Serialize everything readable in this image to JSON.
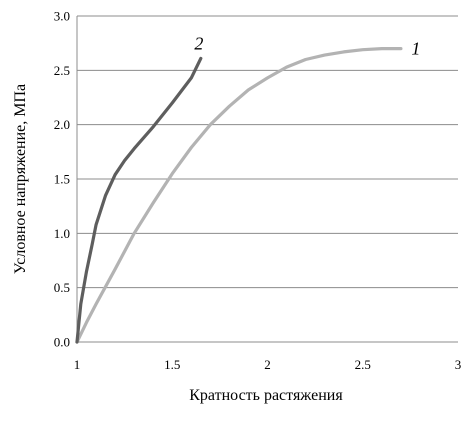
{
  "chart_data": {
    "type": "line",
    "title": "",
    "xlabel": "Кратность растяжения",
    "ylabel": "Условное напряжение, МПа",
    "xlim": [
      1,
      3
    ],
    "ylim": [
      0,
      3.0
    ],
    "x_ticks": [
      "1",
      "1.5",
      "2",
      "2.5",
      "3"
    ],
    "y_ticks": [
      "0.0",
      "0.5",
      "1.0",
      "1.5",
      "2.0",
      "2.5",
      "3.0"
    ],
    "grid": "horizontal",
    "legend": "none",
    "series": [
      {
        "name": "1",
        "color": "#b3b3b3",
        "x": [
          1.0,
          1.05,
          1.1,
          1.2,
          1.3,
          1.4,
          1.5,
          1.6,
          1.7,
          1.8,
          1.9,
          2.0,
          2.1,
          2.2,
          2.3,
          2.4,
          2.5,
          2.6,
          2.7
        ],
        "y": [
          0.0,
          0.18,
          0.35,
          0.67,
          1.0,
          1.28,
          1.55,
          1.79,
          2.0,
          2.17,
          2.32,
          2.43,
          2.53,
          2.6,
          2.64,
          2.67,
          2.69,
          2.7,
          2.7
        ]
      },
      {
        "name": "2",
        "color": "#5e5e5e",
        "x": [
          1.0,
          1.02,
          1.05,
          1.08,
          1.1,
          1.15,
          1.2,
          1.25,
          1.3,
          1.4,
          1.5,
          1.6,
          1.65
        ],
        "y": [
          0.0,
          0.35,
          0.65,
          0.9,
          1.08,
          1.35,
          1.54,
          1.67,
          1.78,
          1.98,
          2.2,
          2.43,
          2.61
        ]
      }
    ]
  }
}
